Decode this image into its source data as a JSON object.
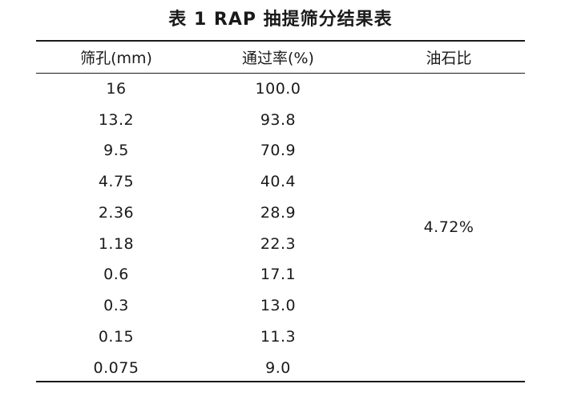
{
  "table": {
    "caption": "表 1   RAP 抽提筛分结果表",
    "headers": [
      "筛孔(mm)",
      "通过率(%)",
      "油石比"
    ],
    "rows": [
      {
        "sieve": "16",
        "passing": "100.0"
      },
      {
        "sieve": "13.2",
        "passing": "93.8"
      },
      {
        "sieve": "9.5",
        "passing": "70.9"
      },
      {
        "sieve": "4.75",
        "passing": "40.4"
      },
      {
        "sieve": "2.36",
        "passing": "28.9"
      },
      {
        "sieve": "1.18",
        "passing": "22.3"
      },
      {
        "sieve": "0.6",
        "passing": "17.1"
      },
      {
        "sieve": "0.3",
        "passing": "13.0"
      },
      {
        "sieve": "0.15",
        "passing": "11.3"
      },
      {
        "sieve": "0.075",
        "passing": "9.0"
      }
    ],
    "asphalt_ratio": "4.72%"
  }
}
